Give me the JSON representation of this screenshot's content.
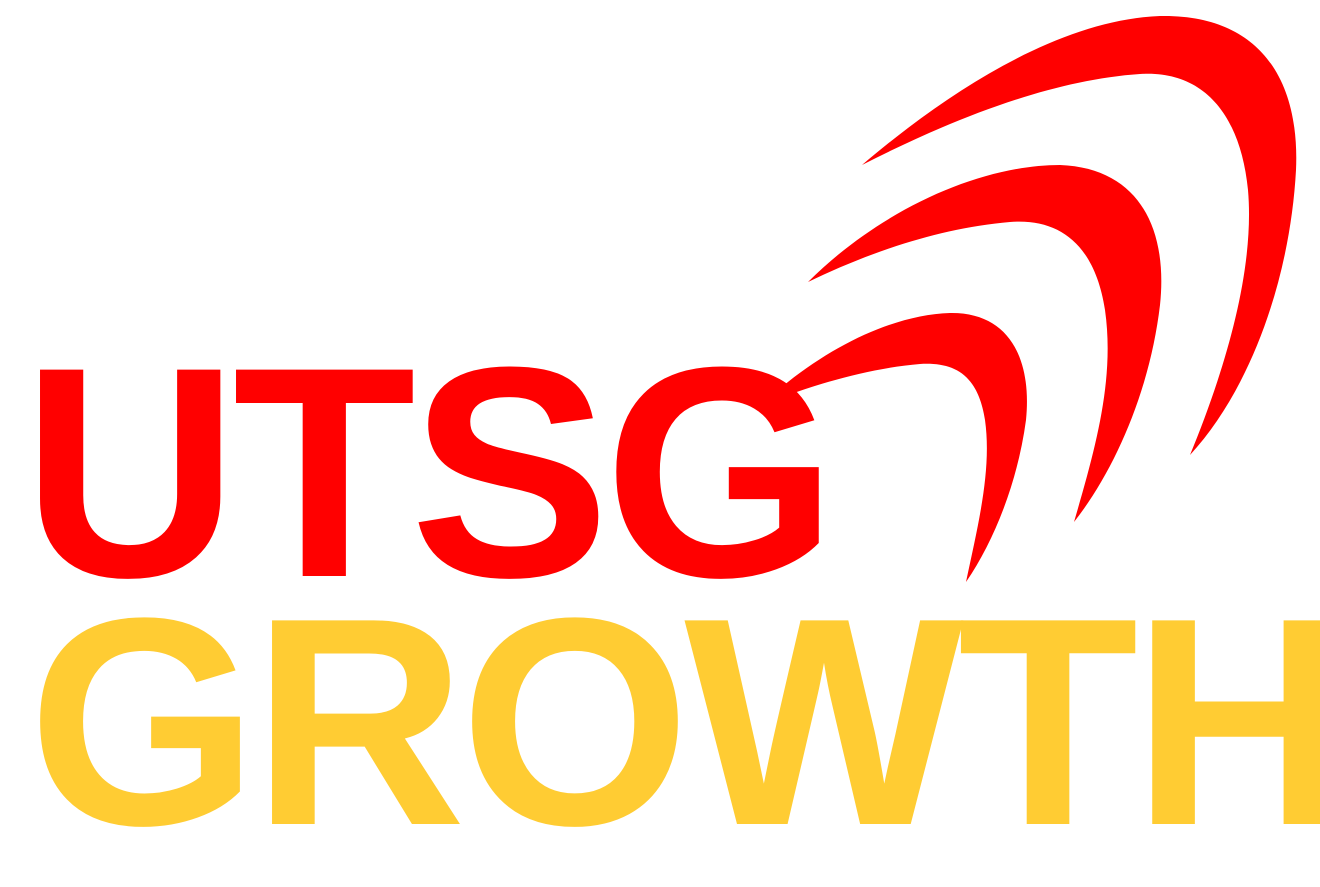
{
  "logo": {
    "top_word": "UTSG",
    "bottom_word": "GROWTH",
    "colors": {
      "primary": "#ff0000",
      "secondary": "#ffcc33",
      "background": "#ffffff"
    },
    "icon": "signal-arcs-icon"
  }
}
